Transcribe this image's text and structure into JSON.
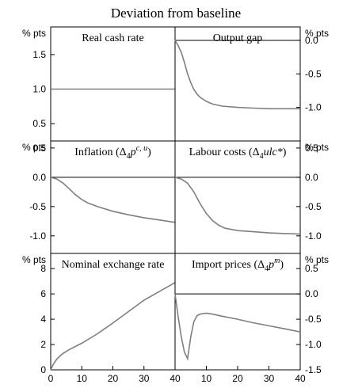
{
  "title": "Deviation from baseline",
  "chart_data": [
    {
      "type": "line",
      "panel": "real-cash-rate",
      "side": "left",
      "title": "Real cash rate",
      "title_sup": "",
      "title_suffix": "",
      "unit": "% pts",
      "ylim": [
        0.25,
        1.9
      ],
      "yticks": [
        1.5,
        1.0,
        0.5
      ],
      "yticklabels": [
        "1.5",
        "1.0",
        "0.5"
      ],
      "zero_line": null,
      "xlim": [
        0,
        40
      ],
      "xticks": [],
      "xticklabels": [],
      "x": [
        0,
        40
      ],
      "y": [
        1.0,
        1.0
      ]
    },
    {
      "type": "line",
      "panel": "output-gap",
      "side": "right",
      "title": "Output gap",
      "title_sup": "",
      "title_suffix": "",
      "unit": "% pts",
      "ylim": [
        -1.5,
        0.2
      ],
      "yticks": [
        0.0,
        -0.5,
        -1.0
      ],
      "yticklabels": [
        "0.0",
        "-0.5",
        "-1.0"
      ],
      "zero_line": 0,
      "xlim": [
        0,
        40
      ],
      "xticks": [],
      "xticklabels": [],
      "x": [
        0,
        1,
        2,
        3,
        4,
        5,
        6,
        7,
        8,
        10,
        12,
        15,
        20,
        25,
        30,
        35,
        40
      ],
      "y": [
        0.0,
        -0.08,
        -0.18,
        -0.33,
        -0.5,
        -0.63,
        -0.73,
        -0.8,
        -0.85,
        -0.91,
        -0.95,
        -0.98,
        -1.0,
        -1.01,
        -1.02,
        -1.02,
        -1.02
      ]
    },
    {
      "type": "line",
      "panel": "inflation",
      "side": "left",
      "title": "Inflation (Δ",
      "title_sub": "4",
      "title_mid": "p",
      "title_sup": "c, u",
      "title_suffix": ")",
      "unit": "% pts",
      "ylim": [
        -1.3,
        0.62
      ],
      "yticks": [
        0.5,
        0.0,
        -0.5,
        -1.0
      ],
      "yticklabels": [
        "0.5",
        "0.0",
        "-0.5",
        "-1.0"
      ],
      "zero_line": 0,
      "xlim": [
        0,
        40
      ],
      "xticks": [],
      "xticklabels": [],
      "x": [
        0,
        2,
        4,
        6,
        8,
        10,
        12,
        15,
        20,
        25,
        30,
        35,
        40
      ],
      "y": [
        0.0,
        -0.03,
        -0.1,
        -0.2,
        -0.3,
        -0.38,
        -0.44,
        -0.5,
        -0.58,
        -0.64,
        -0.69,
        -0.73,
        -0.77
      ]
    },
    {
      "type": "line",
      "panel": "labour-costs",
      "side": "right",
      "title": "Labour costs (Δ",
      "title_sub": "4",
      "title_mid": "ulc*",
      "title_sup": "",
      "title_suffix": ")",
      "unit": "% pts",
      "ylim": [
        -1.3,
        0.62
      ],
      "yticks": [
        0.5,
        0.0,
        -0.5,
        -1.0
      ],
      "yticklabels": [
        "0.5",
        "0.0",
        "-0.5",
        "-1.0"
      ],
      "zero_line": 0,
      "xlim": [
        0,
        40
      ],
      "xticks": [],
      "xticklabels": [],
      "x": [
        0,
        2,
        4,
        6,
        8,
        10,
        12,
        14,
        16,
        20,
        25,
        30,
        35,
        40
      ],
      "y": [
        0.0,
        -0.03,
        -0.1,
        -0.25,
        -0.45,
        -0.62,
        -0.74,
        -0.82,
        -0.87,
        -0.91,
        -0.93,
        -0.95,
        -0.96,
        -0.97
      ]
    },
    {
      "type": "line",
      "panel": "nominal-exchange-rate",
      "side": "left",
      "title": "Nominal exchange rate",
      "title_sup": "",
      "title_suffix": "",
      "unit": "% pts",
      "ylim": [
        0,
        9.2
      ],
      "yticks": [
        8,
        6,
        4,
        2,
        0
      ],
      "yticklabels": [
        "8",
        "6",
        "4",
        "2",
        "0"
      ],
      "zero_line": null,
      "xlim": [
        0,
        40
      ],
      "xticks": [
        0,
        10,
        20,
        30,
        40
      ],
      "xticklabels": [
        "0",
        "10",
        "20",
        "30",
        "40"
      ],
      "x": [
        0,
        1,
        2,
        3,
        4,
        6,
        8,
        10,
        15,
        20,
        25,
        30,
        35,
        40
      ],
      "y": [
        0.0,
        0.5,
        0.85,
        1.1,
        1.3,
        1.6,
        1.85,
        2.1,
        2.85,
        3.7,
        4.6,
        5.5,
        6.2,
        6.9
      ]
    },
    {
      "type": "line",
      "panel": "import-prices",
      "side": "right",
      "title": "Import prices (Δ",
      "title_sub": "4",
      "title_mid": "p",
      "title_sup": "m",
      "title_suffix": ")",
      "unit": "% pts",
      "ylim": [
        -1.5,
        0.8
      ],
      "yticks": [
        0.5,
        0.0,
        -0.5,
        -1.0,
        -1.5
      ],
      "yticklabels": [
        "0.5",
        "0.0",
        "-0.5",
        "-1.0",
        "-1.5"
      ],
      "zero_line": 0,
      "xlim": [
        0,
        40
      ],
      "xticks": [
        10,
        20,
        30,
        40
      ],
      "xticklabels": [
        "10",
        "20",
        "30",
        "40"
      ],
      "x": [
        0,
        1,
        2,
        3,
        4,
        5,
        6,
        7,
        8,
        10,
        12,
        15,
        20,
        25,
        30,
        35,
        40
      ],
      "y": [
        0.0,
        -0.45,
        -0.85,
        -1.15,
        -1.28,
        -0.85,
        -0.55,
        -0.43,
        -0.4,
        -0.38,
        -0.4,
        -0.44,
        -0.5,
        -0.57,
        -0.63,
        -0.69,
        -0.75
      ]
    }
  ]
}
